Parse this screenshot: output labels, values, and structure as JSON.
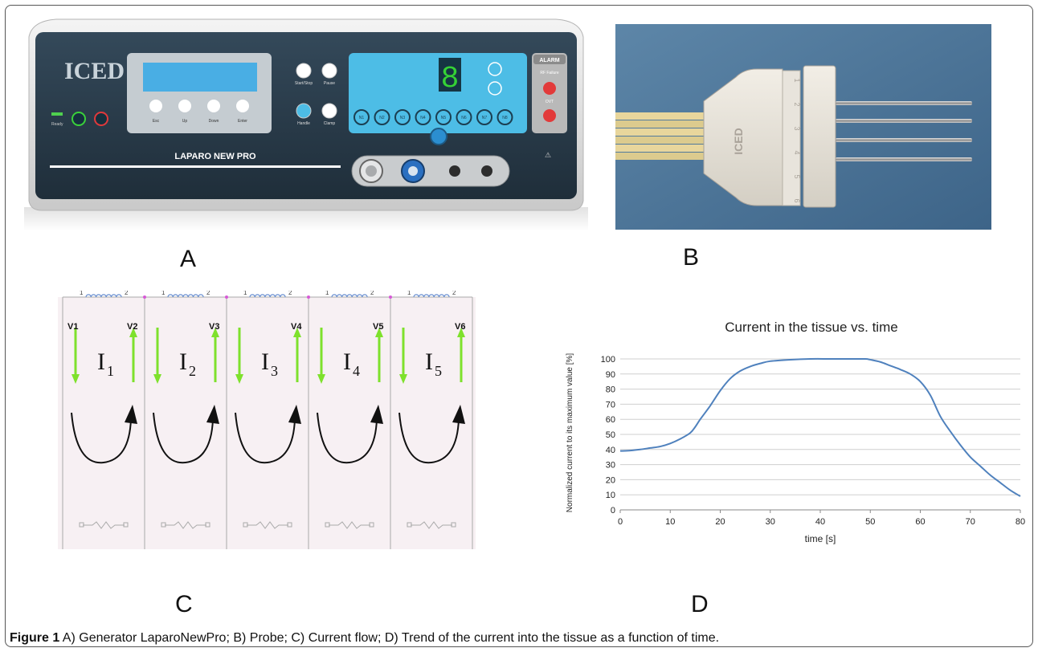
{
  "panels": {
    "a": {
      "letter": "A",
      "logo": "ICED logo",
      "ready_label": "Ready",
      "model_label": "LAPARO NEW PRO",
      "nav_buttons": [
        "Esc",
        "Up",
        "Down",
        "Enter"
      ],
      "control_buttons": [
        "Start/Stop",
        "Pause",
        "Handle",
        "Clamp"
      ],
      "digit_display": "8",
      "needle_buttons": [
        "N1",
        "N2",
        "N3",
        "N4",
        "N5",
        "N6",
        "N7",
        "N8"
      ],
      "alarm_title": "ALARM",
      "alarm_items": [
        "RF Failure",
        "OVT"
      ]
    },
    "b": {
      "letter": "B",
      "logo": "ICED logo",
      "numbers": [
        "1",
        "2",
        "3",
        "4",
        "5",
        "6"
      ]
    },
    "c": {
      "letter": "C",
      "voltages": [
        "V1",
        "V2",
        "V3",
        "V4",
        "V5",
        "V6"
      ],
      "currents": [
        "I",
        "I",
        "I",
        "I",
        "I"
      ],
      "current_subscripts": [
        "1",
        "2",
        "3",
        "4",
        "5"
      ],
      "coil_labels": [
        "1",
        "2"
      ],
      "arrow_color": "#7ee12c",
      "node_color": "#d65ad6"
    },
    "d": {
      "letter": "D"
    }
  },
  "chart_data": {
    "type": "line",
    "title": "Current in the tissue vs. time",
    "xlabel": "time [s]",
    "ylabel": "Normalized current to its maximum value [%]",
    "xlim": [
      0,
      80
    ],
    "ylim": [
      0,
      100
    ],
    "xticks": [
      "0",
      "10",
      "20",
      "30",
      "40",
      "50",
      "60",
      "70",
      "80"
    ],
    "yticks": [
      "0",
      "10",
      "20",
      "30",
      "40",
      "50",
      "60",
      "70",
      "80",
      "90",
      "100"
    ],
    "grid": "horizontal",
    "series": [
      {
        "color": "#4f81bd",
        "x": [
          0,
          2,
          4,
          6,
          8,
          10,
          12,
          14,
          15,
          16,
          18,
          20,
          22,
          24,
          26,
          28,
          30,
          34,
          38,
          42,
          46,
          49,
          50,
          52,
          54,
          56,
          58,
          60,
          62,
          64,
          66,
          68,
          70,
          72,
          74,
          76,
          78,
          80
        ],
        "y": [
          39,
          39.3,
          40,
          41,
          42,
          44,
          47,
          51,
          55,
          60,
          69,
          79,
          87,
          92,
          95,
          97,
          98.5,
          99.5,
          100,
          100,
          100,
          100,
          99.5,
          98,
          95.5,
          93,
          90,
          85,
          76,
          62,
          52,
          43,
          35,
          29,
          23,
          18,
          13,
          9
        ]
      }
    ]
  },
  "caption": {
    "label": "Figure 1",
    "text": " A) Generator LaparoNewPro; B) Probe; C) Current flow; D) Trend of the current into the tissue as a function of time."
  }
}
